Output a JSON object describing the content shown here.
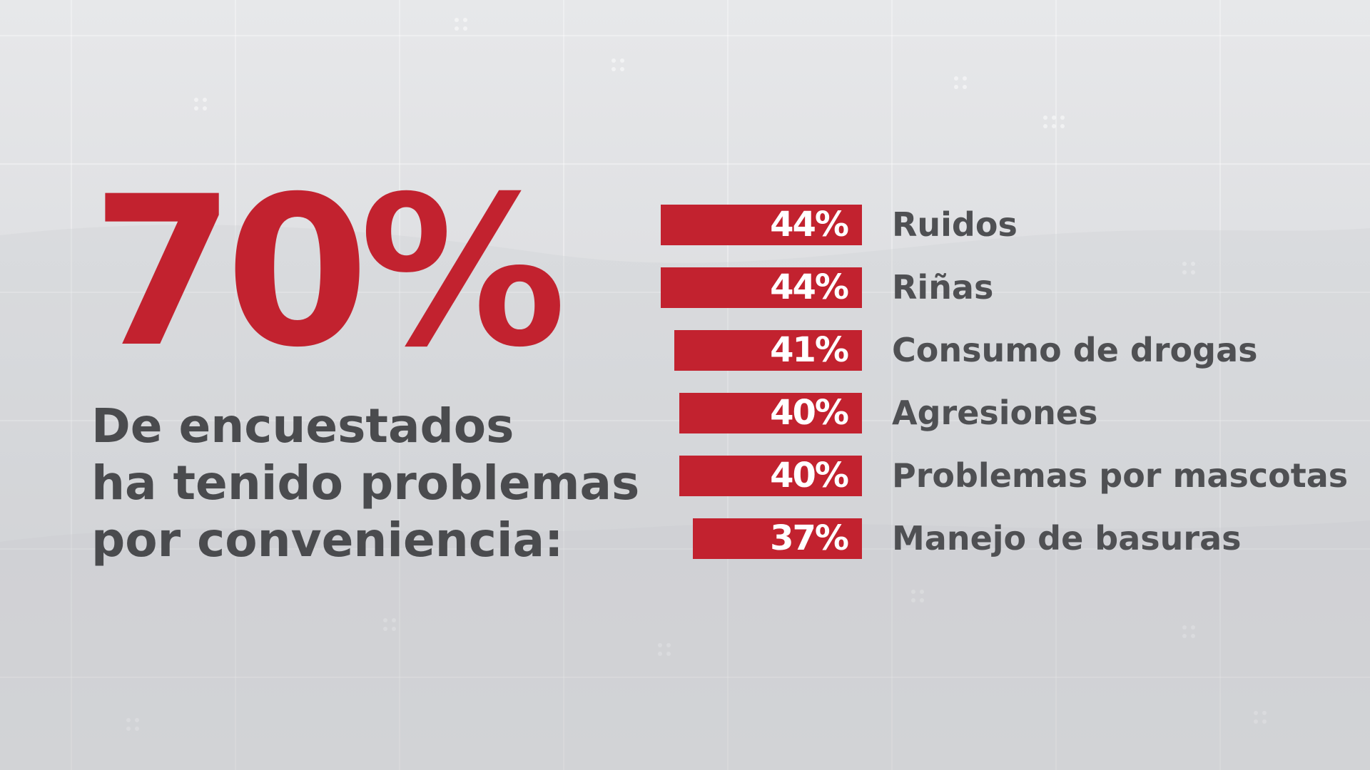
{
  "headline": {
    "value": "70%",
    "lines": [
      "De encuestados",
      "ha tenido problemas",
      "por conveniencia:"
    ]
  },
  "colors": {
    "accent": "#c2222f",
    "text": "#4a4b4e",
    "background": "#e3e4e6"
  },
  "chart_data": {
    "type": "bar",
    "orientation": "horizontal",
    "categories": [
      "Ruidos",
      "Riñas",
      "Consumo de drogas",
      "Agresiones",
      "Problemas por mascotas",
      "Manejo de basuras"
    ],
    "values": [
      44,
      44,
      41,
      40,
      40,
      37
    ],
    "value_labels": [
      "44%",
      "44%",
      "41%",
      "40%",
      "40%",
      "37%"
    ],
    "unit": "%",
    "xlim": [
      0,
      44
    ],
    "grid": false,
    "legend": "none"
  }
}
